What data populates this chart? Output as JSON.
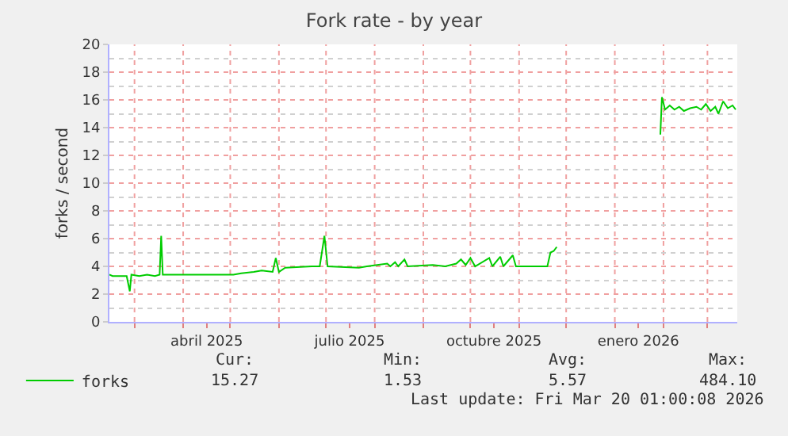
{
  "chart_data": {
    "type": "line",
    "title": "Fork rate - by year",
    "ylabel": "forks / second",
    "x": [
      "2025-02-13",
      "2025-02-15",
      "2025-02-24",
      "2025-02-26",
      "2025-02-27",
      "2025-03-04",
      "2025-03-09",
      "2025-03-14",
      "2025-03-17",
      "2025-03-18",
      "2025-03-19",
      "2025-04-13",
      "2025-05-03",
      "2025-05-08",
      "2025-05-16",
      "2025-05-21",
      "2025-05-28",
      "2025-05-30",
      "2025-06-01",
      "2025-06-05",
      "2025-06-22",
      "2025-06-27",
      "2025-06-30",
      "2025-07-02",
      "2025-07-22",
      "2025-07-27",
      "2025-08-09",
      "2025-08-11",
      "2025-08-14",
      "2025-08-16",
      "2025-08-20",
      "2025-08-22",
      "2025-09-07",
      "2025-09-15",
      "2025-09-22",
      "2025-09-25",
      "2025-09-28",
      "2025-10-01",
      "2025-10-04",
      "2025-10-13",
      "2025-10-15",
      "2025-10-20",
      "2025-10-22",
      "2025-10-28",
      "2025-10-30",
      "2025-11-19",
      "2025-11-21",
      "2025-11-23",
      "2025-11-25",
      "2025-11-26",
      "2026-01-30",
      "2026-01-31",
      "2026-02-02",
      "2026-02-05",
      "2026-02-08",
      "2026-02-11",
      "2026-02-14",
      "2026-02-18",
      "2026-02-22",
      "2026-02-25",
      "2026-02-28",
      "2026-03-03",
      "2026-03-06",
      "2026-03-08",
      "2026-03-11",
      "2026-03-14",
      "2026-03-17",
      "2026-03-19"
    ],
    "series": [
      {
        "name": "forks",
        "color": "#00cc00",
        "values": [
          3.4,
          3.3,
          3.3,
          2.2,
          3.4,
          3.3,
          3.4,
          3.3,
          3.4,
          6.2,
          3.4,
          3.4,
          3.4,
          3.5,
          3.6,
          3.7,
          3.6,
          4.6,
          3.6,
          3.9,
          4.0,
          4.0,
          6.2,
          4.0,
          3.9,
          4.0,
          4.2,
          4.0,
          4.3,
          4.0,
          4.5,
          4.0,
          4.1,
          4.0,
          4.2,
          4.5,
          4.1,
          4.6,
          4.0,
          4.6,
          4.0,
          4.7,
          4.0,
          4.8,
          4.0,
          4.0,
          5.0,
          5.1,
          5.4,
          null,
          13.5,
          16.2,
          15.3,
          15.6,
          15.3,
          15.5,
          15.2,
          15.4,
          15.5,
          15.3,
          15.7,
          15.2,
          15.5,
          15.0,
          15.9,
          15.4,
          15.6,
          15.3
        ]
      }
    ],
    "xlim": [
      "2025-02-13",
      "2026-03-20"
    ],
    "xticks": [
      {
        "value": "2025-03-01",
        "label": null
      },
      {
        "value": "2025-04-01",
        "label": null
      },
      {
        "value": "2025-04-16",
        "label": "abril 2025"
      },
      {
        "value": "2025-05-01",
        "label": null
      },
      {
        "value": "2025-06-01",
        "label": null
      },
      {
        "value": "2025-07-01",
        "label": null
      },
      {
        "value": "2025-07-16",
        "label": "julio 2025"
      },
      {
        "value": "2025-08-01",
        "label": null
      },
      {
        "value": "2025-09-01",
        "label": null
      },
      {
        "value": "2025-10-01",
        "label": null
      },
      {
        "value": "2025-10-16",
        "label": "octubre 2025"
      },
      {
        "value": "2025-11-01",
        "label": null
      },
      {
        "value": "2025-12-01",
        "label": null
      },
      {
        "value": "2026-01-01",
        "label": null
      },
      {
        "value": "2026-01-16",
        "label": "enero 2026"
      },
      {
        "value": "2026-02-01",
        "label": null
      },
      {
        "value": "2026-03-01",
        "label": null
      }
    ],
    "ylim": [
      0,
      20
    ],
    "yticks": [
      0,
      2,
      4,
      6,
      8,
      10,
      12,
      14,
      16,
      18,
      20
    ],
    "grid": true,
    "legend": "bottom left",
    "marker": "none",
    "line_style": "solid",
    "annotations": [
      "Cur:",
      "Min:",
      "Avg:",
      "Max:",
      "15.27",
      "1.53",
      "5.57",
      "484.10",
      "Last update: Fri Mar 20 01:00:08 2026"
    ]
  }
}
